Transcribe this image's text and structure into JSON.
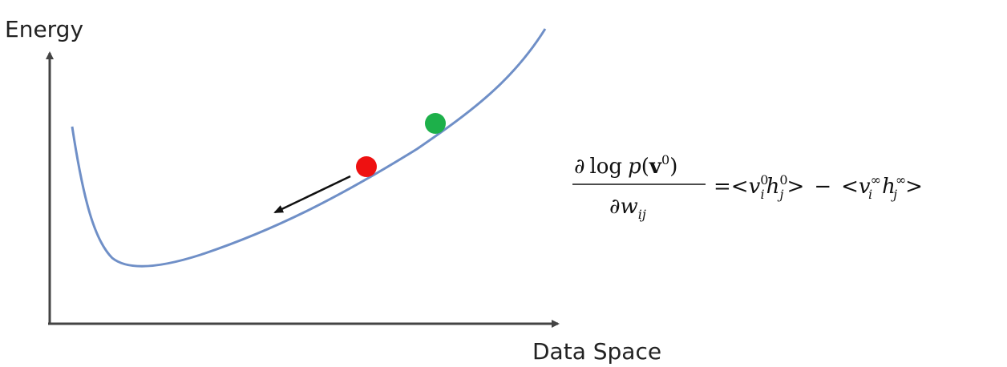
{
  "axes": {
    "y_label": "Energy",
    "x_label": "Data Space"
  },
  "colors": {
    "curve": "#6f8fc7",
    "axis": "#444444",
    "red_point": "#ee1111",
    "green_point": "#1db04a",
    "arrow": "#111111"
  },
  "equation": {
    "partial": "∂",
    "log": "log",
    "p": "p",
    "open_paren": "(",
    "v": "v",
    "sup0": "0",
    "close_paren": ")",
    "w": "w",
    "ij": "ij",
    "equals": "=",
    "lt": "<",
    "gt": ">",
    "vi": "v",
    "hj": "h",
    "i": "i",
    "j": "j",
    "zero": "0",
    "minus": "−",
    "inf": "∞"
  }
}
